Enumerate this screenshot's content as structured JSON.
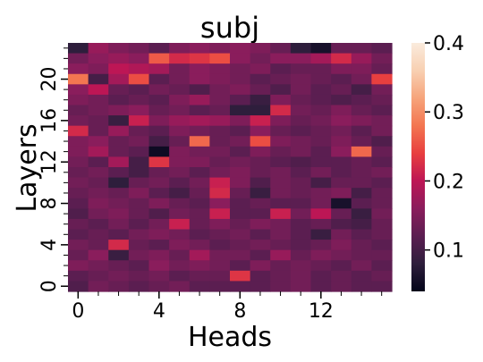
{
  "chart_data": {
    "type": "heatmap",
    "title": "subj",
    "xlabel": "Heads",
    "ylabel": "Layers",
    "x_tick_labels": [
      "0",
      "4",
      "8",
      "12"
    ],
    "x_tick_values": [
      0,
      4,
      8,
      12
    ],
    "y_tick_labels": [
      "0",
      "4",
      "8",
      "12",
      "16",
      "20"
    ],
    "y_tick_values": [
      0,
      4,
      8,
      12,
      16,
      20
    ],
    "n_heads": 16,
    "n_layers": 24,
    "colorbar": {
      "min": 0.04,
      "max": 0.4,
      "tick_labels": [
        "0.1",
        "0.2",
        "0.3",
        "0.4"
      ],
      "tick_values": [
        0.1,
        0.2,
        0.3,
        0.4
      ],
      "colormap": "rocket",
      "color_stops": [
        "#03051a",
        "#2e1e3c",
        "#5b1e51",
        "#8a1d5c",
        "#bd1655",
        "#e83f3f",
        "#f37651",
        "#f6a47b",
        "#f8d0b2",
        "#faebdd"
      ]
    },
    "values_by_layer_from_top": [
      [
        0.08,
        0.17,
        0.15,
        0.14,
        0.12,
        0.15,
        0.16,
        0.15,
        0.16,
        0.15,
        0.13,
        0.08,
        0.06,
        0.13,
        0.13,
        0.12
      ],
      [
        0.14,
        0.16,
        0.17,
        0.16,
        0.26,
        0.22,
        0.23,
        0.25,
        0.16,
        0.14,
        0.16,
        0.16,
        0.18,
        0.22,
        0.17,
        0.14
      ],
      [
        0.16,
        0.15,
        0.2,
        0.19,
        0.18,
        0.14,
        0.16,
        0.15,
        0.14,
        0.15,
        0.12,
        0.13,
        0.13,
        0.15,
        0.15,
        0.13
      ],
      [
        0.28,
        0.1,
        0.18,
        0.25,
        0.12,
        0.14,
        0.16,
        0.15,
        0.14,
        0.12,
        0.13,
        0.14,
        0.13,
        0.12,
        0.14,
        0.24
      ],
      [
        0.16,
        0.2,
        0.13,
        0.12,
        0.14,
        0.13,
        0.11,
        0.14,
        0.15,
        0.13,
        0.11,
        0.14,
        0.12,
        0.13,
        0.1,
        0.14
      ],
      [
        0.15,
        0.14,
        0.12,
        0.13,
        0.12,
        0.15,
        0.17,
        0.14,
        0.12,
        0.09,
        0.15,
        0.13,
        0.12,
        0.11,
        0.12,
        0.13
      ],
      [
        0.13,
        0.14,
        0.15,
        0.16,
        0.13,
        0.14,
        0.12,
        0.13,
        0.08,
        0.08,
        0.22,
        0.14,
        0.13,
        0.15,
        0.13,
        0.12
      ],
      [
        0.14,
        0.13,
        0.09,
        0.21,
        0.15,
        0.17,
        0.18,
        0.17,
        0.15,
        0.21,
        0.15,
        0.13,
        0.14,
        0.16,
        0.15,
        0.14
      ],
      [
        0.22,
        0.13,
        0.17,
        0.13,
        0.12,
        0.15,
        0.14,
        0.13,
        0.12,
        0.16,
        0.13,
        0.12,
        0.13,
        0.14,
        0.12,
        0.14
      ],
      [
        0.15,
        0.16,
        0.13,
        0.14,
        0.1,
        0.13,
        0.27,
        0.13,
        0.14,
        0.25,
        0.15,
        0.14,
        0.13,
        0.15,
        0.13,
        0.11
      ],
      [
        0.15,
        0.18,
        0.13,
        0.12,
        0.05,
        0.15,
        0.14,
        0.14,
        0.12,
        0.15,
        0.13,
        0.14,
        0.12,
        0.16,
        0.27,
        0.13
      ],
      [
        0.14,
        0.12,
        0.18,
        0.1,
        0.23,
        0.15,
        0.15,
        0.13,
        0.14,
        0.13,
        0.12,
        0.11,
        0.12,
        0.12,
        0.13,
        0.12
      ],
      [
        0.13,
        0.14,
        0.12,
        0.1,
        0.13,
        0.14,
        0.12,
        0.14,
        0.15,
        0.13,
        0.14,
        0.12,
        0.14,
        0.12,
        0.13,
        0.14
      ],
      [
        0.14,
        0.13,
        0.08,
        0.13,
        0.14,
        0.12,
        0.14,
        0.21,
        0.15,
        0.11,
        0.14,
        0.13,
        0.1,
        0.13,
        0.13,
        0.12
      ],
      [
        0.13,
        0.14,
        0.13,
        0.15,
        0.12,
        0.1,
        0.13,
        0.22,
        0.13,
        0.09,
        0.14,
        0.13,
        0.14,
        0.15,
        0.1,
        0.13
      ],
      [
        0.12,
        0.15,
        0.14,
        0.13,
        0.15,
        0.13,
        0.12,
        0.16,
        0.12,
        0.13,
        0.12,
        0.12,
        0.14,
        0.06,
        0.12,
        0.13
      ],
      [
        0.11,
        0.14,
        0.15,
        0.13,
        0.11,
        0.14,
        0.13,
        0.21,
        0.12,
        0.12,
        0.21,
        0.14,
        0.2,
        0.13,
        0.09,
        0.14
      ],
      [
        0.13,
        0.12,
        0.14,
        0.12,
        0.14,
        0.21,
        0.13,
        0.15,
        0.13,
        0.15,
        0.14,
        0.12,
        0.13,
        0.11,
        0.1,
        0.13
      ],
      [
        0.12,
        0.13,
        0.12,
        0.14,
        0.15,
        0.14,
        0.12,
        0.13,
        0.14,
        0.12,
        0.14,
        0.12,
        0.09,
        0.14,
        0.12,
        0.13
      ],
      [
        0.14,
        0.13,
        0.22,
        0.13,
        0.12,
        0.15,
        0.14,
        0.12,
        0.13,
        0.14,
        0.13,
        0.12,
        0.13,
        0.15,
        0.13,
        0.12
      ],
      [
        0.13,
        0.16,
        0.09,
        0.14,
        0.15,
        0.13,
        0.18,
        0.14,
        0.14,
        0.12,
        0.17,
        0.13,
        0.15,
        0.14,
        0.13,
        0.13
      ],
      [
        0.15,
        0.14,
        0.13,
        0.12,
        0.16,
        0.14,
        0.15,
        0.14,
        0.12,
        0.15,
        0.13,
        0.14,
        0.13,
        0.12,
        0.14,
        0.12
      ],
      [
        0.12,
        0.13,
        0.14,
        0.13,
        0.14,
        0.12,
        0.13,
        0.13,
        0.23,
        0.12,
        0.13,
        0.14,
        0.12,
        0.13,
        0.12,
        0.13
      ],
      [
        0.11,
        0.14,
        0.13,
        0.12,
        0.13,
        0.14,
        0.12,
        0.12,
        0.12,
        0.12,
        0.13,
        0.14,
        0.12,
        0.13,
        0.12,
        0.12
      ]
    ]
  }
}
